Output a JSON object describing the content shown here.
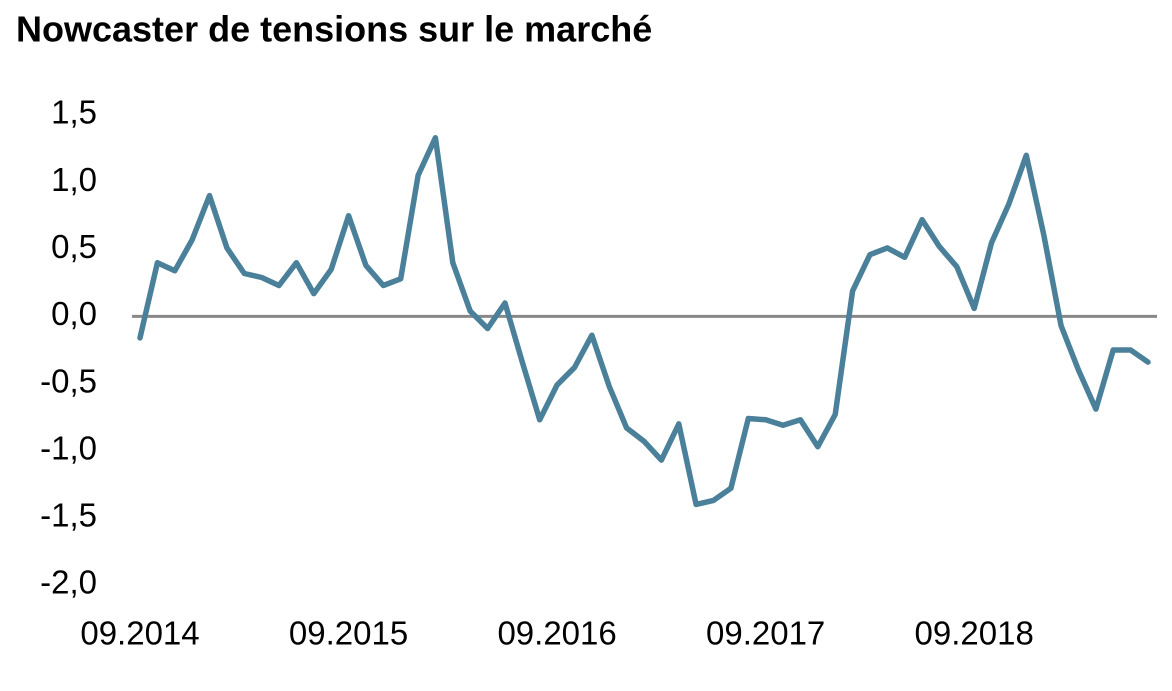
{
  "chart_data": {
    "type": "line",
    "title": "Nowcaster de tensions sur le marché",
    "categories": [
      "09.2014",
      null,
      null,
      null,
      null,
      null,
      null,
      null,
      null,
      null,
      null,
      null,
      "09.2015",
      null,
      null,
      null,
      null,
      null,
      null,
      null,
      null,
      null,
      null,
      null,
      "09.2016",
      null,
      null,
      null,
      null,
      null,
      null,
      null,
      null,
      null,
      null,
      null,
      "09.2017",
      null,
      null,
      null,
      null,
      null,
      null,
      null,
      null,
      null,
      null,
      null,
      "09.2018",
      null,
      null,
      null,
      null,
      null,
      null,
      null,
      null,
      null,
      null
    ],
    "values": [
      -0.16,
      0.4,
      0.34,
      0.57,
      0.9,
      0.51,
      0.32,
      0.29,
      0.23,
      0.4,
      0.17,
      0.35,
      0.75,
      0.38,
      0.23,
      0.28,
      1.05,
      1.33,
      0.4,
      0.04,
      -0.09,
      0.1,
      -0.34,
      -0.77,
      -0.51,
      -0.38,
      -0.14,
      -0.52,
      -0.83,
      -0.93,
      -1.07,
      -0.8,
      -1.4,
      -1.37,
      -1.28,
      -0.76,
      -0.77,
      -0.81,
      -0.77,
      -0.97,
      -0.73,
      0.19,
      0.46,
      0.51,
      0.44,
      0.72,
      0.52,
      0.37,
      0.06,
      0.55,
      0.84,
      1.2,
      0.61,
      -0.07,
      -0.4,
      -0.69,
      -0.25,
      -0.25,
      -0.34
    ],
    "color": "#4a8099",
    "ylim": [
      -2.0,
      1.5
    ],
    "yticks": [
      {
        "value": -2.0,
        "label": "-2,0"
      },
      {
        "value": -1.5,
        "label": "-1,5"
      },
      {
        "value": -1.0,
        "label": "-1,0"
      },
      {
        "value": -0.5,
        "label": "-0,5"
      },
      {
        "value": 0,
        "label": "0,0"
      },
      {
        "value": 0.5,
        "label": "0,5"
      },
      {
        "value": 1.0,
        "label": "1,0"
      },
      {
        "value": 1.5,
        "label": "1,5"
      }
    ],
    "zero_line": true,
    "grid": false
  }
}
